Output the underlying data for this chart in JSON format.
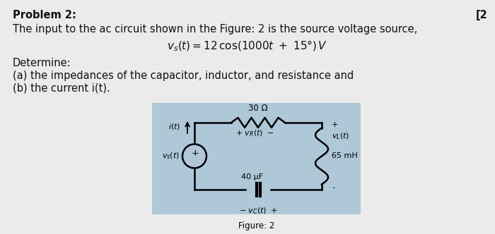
{
  "bg_color": "#d8d8d8",
  "page_bg": "#e8e8e8",
  "circuit_bg": "#aec8d8",
  "title": "Problem 2:",
  "page_num": "[2",
  "line1": "The input to the ac circuit shown in the Figure: 2 is the source voltage source,",
  "line2_center": "v_s(t) = 12 cos(1000t + 15°) V",
  "line3": "Determine:",
  "line4": "(a) the impedances of the capacitor, inductor, and resistance and",
  "line5": "(b) the current i(t).",
  "figure_caption": "Figure: 2",
  "resistor_label": "30 Ω",
  "inductor_label": "65 mH",
  "capacitor_label": "40 μF",
  "font_main": 10.5,
  "font_small": 8.5
}
